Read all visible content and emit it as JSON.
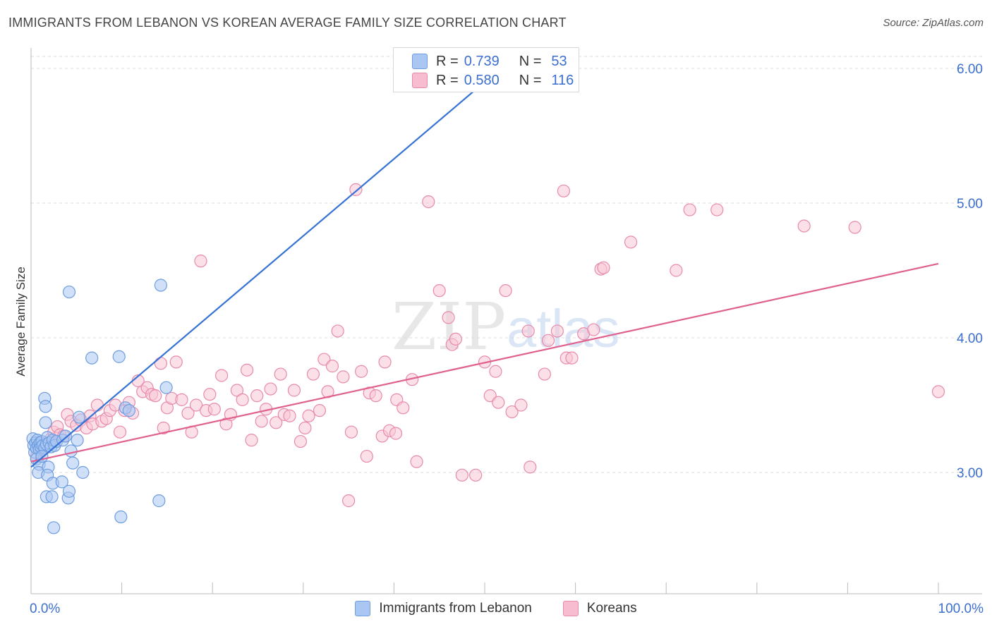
{
  "title": "IMMIGRANTS FROM LEBANON VS KOREAN AVERAGE FAMILY SIZE CORRELATION CHART",
  "source": "Source: ZipAtlas.com",
  "watermark": {
    "zip": "ZIP",
    "atlas": "atlas"
  },
  "legend": {
    "rows": [
      {
        "r_label": "R =",
        "r_value": "0.739",
        "n_label": "N =",
        "n_value": "53",
        "color": "#a9c7f2",
        "border": "#6e9de0"
      },
      {
        "r_label": "R =",
        "r_value": "0.580",
        "n_label": "N =",
        "n_value": "116",
        "color": "#f7bcd0",
        "border": "#e88aab"
      }
    ]
  },
  "colors": {
    "lebanon_fill": "#a9c7f2",
    "lebanon_stroke": "#6e9de0",
    "lebanon_line": "#3473d4",
    "korean_fill": "#f7c6d6",
    "korean_stroke": "#e88aab",
    "korean_line": "#e0608e",
    "tick_label": "#3b6fce",
    "grid": "#dddddd"
  },
  "chart_data": {
    "type": "scatter",
    "title": "IMMIGRANTS FROM LEBANON VS KOREAN AVERAGE FAMILY SIZE CORRELATION CHART",
    "xlabel": "",
    "ylabel": "Average Family Size",
    "xlim": [
      0,
      100
    ],
    "ylim": [
      2.0,
      6.1
    ],
    "x_tick_labels": [
      "0.0%",
      "100.0%"
    ],
    "y_ticks": [
      3.0,
      4.0,
      5.0,
      6.0
    ],
    "y_tick_labels": [
      "3.00",
      "4.00",
      "5.00",
      "6.00"
    ],
    "grid": true,
    "legend_position": "bottom",
    "series": [
      {
        "name": "Immigrants from Lebanon",
        "r": 0.739,
        "n": 53,
        "trend": {
          "x": [
            0,
            50
          ],
          "y": [
            3.04,
            5.9
          ]
        },
        "points": [
          [
            0.2,
            3.25
          ],
          [
            0.3,
            3.2
          ],
          [
            0.4,
            3.15
          ],
          [
            0.5,
            3.22
          ],
          [
            0.6,
            3.18
          ],
          [
            0.7,
            3.24
          ],
          [
            0.8,
            3.2
          ],
          [
            0.9,
            3.17
          ],
          [
            1.0,
            3.22
          ],
          [
            1.1,
            3.19
          ],
          [
            1.2,
            3.23
          ],
          [
            1.3,
            3.2
          ],
          [
            1.5,
            3.18
          ],
          [
            1.7,
            3.21
          ],
          [
            1.8,
            3.26
          ],
          [
            2.0,
            3.22
          ],
          [
            2.2,
            3.19
          ],
          [
            2.4,
            3.24
          ],
          [
            2.6,
            3.2
          ],
          [
            2.8,
            3.23
          ],
          [
            0.6,
            3.1
          ],
          [
            0.9,
            3.06
          ],
          [
            1.2,
            3.12
          ],
          [
            0.8,
            3.0
          ],
          [
            1.9,
            3.04
          ],
          [
            1.5,
            3.55
          ],
          [
            1.6,
            3.49
          ],
          [
            1.6,
            3.37
          ],
          [
            1.8,
            2.98
          ],
          [
            1.7,
            2.82
          ],
          [
            2.3,
            2.82
          ],
          [
            2.4,
            2.92
          ],
          [
            2.5,
            2.59
          ],
          [
            3.4,
            2.93
          ],
          [
            4.1,
            2.81
          ],
          [
            4.2,
            2.86
          ],
          [
            4.2,
            4.34
          ],
          [
            3.5,
            3.24
          ],
          [
            3.8,
            3.27
          ],
          [
            4.4,
            3.16
          ],
          [
            4.6,
            3.07
          ],
          [
            5.1,
            3.24
          ],
          [
            5.3,
            3.41
          ],
          [
            5.7,
            3.0
          ],
          [
            6.7,
            3.85
          ],
          [
            9.7,
            3.86
          ],
          [
            10.4,
            3.48
          ],
          [
            10.8,
            3.46
          ],
          [
            9.9,
            2.67
          ],
          [
            14.3,
            4.39
          ],
          [
            14.1,
            2.79
          ],
          [
            14.9,
            3.63
          ],
          [
            42.5,
            5.95
          ]
        ]
      },
      {
        "name": "Koreans",
        "r": 0.58,
        "n": 116,
        "trend": {
          "x": [
            0,
            100
          ],
          "y": [
            3.08,
            4.55
          ]
        },
        "points": [
          [
            0.6,
            3.12
          ],
          [
            1.0,
            3.16
          ],
          [
            1.3,
            3.22
          ],
          [
            1.8,
            3.2
          ],
          [
            2.2,
            3.25
          ],
          [
            2.5,
            3.3
          ],
          [
            2.9,
            3.34
          ],
          [
            3.2,
            3.28
          ],
          [
            3.6,
            3.27
          ],
          [
            4.0,
            3.43
          ],
          [
            4.4,
            3.38
          ],
          [
            5.0,
            3.35
          ],
          [
            5.5,
            3.39
          ],
          [
            6.1,
            3.33
          ],
          [
            6.5,
            3.42
          ],
          [
            6.8,
            3.36
          ],
          [
            7.3,
            3.5
          ],
          [
            7.8,
            3.38
          ],
          [
            8.3,
            3.4
          ],
          [
            8.7,
            3.46
          ],
          [
            9.3,
            3.5
          ],
          [
            9.8,
            3.3
          ],
          [
            10.3,
            3.46
          ],
          [
            10.8,
            3.52
          ],
          [
            11.2,
            3.44
          ],
          [
            11.8,
            3.68
          ],
          [
            12.3,
            3.6
          ],
          [
            12.8,
            3.63
          ],
          [
            13.3,
            3.58
          ],
          [
            13.7,
            3.57
          ],
          [
            14.3,
            3.81
          ],
          [
            14.6,
            3.33
          ],
          [
            15.0,
            3.48
          ],
          [
            15.5,
            3.55
          ],
          [
            16.0,
            3.82
          ],
          [
            16.6,
            3.54
          ],
          [
            17.3,
            3.44
          ],
          [
            17.7,
            3.3
          ],
          [
            18.2,
            3.5
          ],
          [
            18.7,
            4.57
          ],
          [
            19.3,
            3.46
          ],
          [
            19.7,
            3.58
          ],
          [
            20.2,
            3.47
          ],
          [
            21.0,
            3.72
          ],
          [
            21.5,
            3.36
          ],
          [
            22.0,
            3.43
          ],
          [
            22.7,
            3.61
          ],
          [
            23.3,
            3.54
          ],
          [
            23.8,
            3.76
          ],
          [
            24.3,
            3.24
          ],
          [
            24.9,
            3.57
          ],
          [
            25.4,
            3.38
          ],
          [
            25.9,
            3.47
          ],
          [
            26.4,
            3.62
          ],
          [
            27.0,
            3.37
          ],
          [
            27.5,
            3.73
          ],
          [
            27.9,
            3.43
          ],
          [
            28.5,
            3.42
          ],
          [
            29.0,
            3.61
          ],
          [
            29.7,
            3.23
          ],
          [
            30.2,
            3.33
          ],
          [
            30.6,
            3.42
          ],
          [
            31.1,
            3.73
          ],
          [
            31.8,
            3.46
          ],
          [
            32.3,
            3.84
          ],
          [
            32.7,
            3.6
          ],
          [
            33.2,
            3.79
          ],
          [
            33.8,
            4.05
          ],
          [
            34.4,
            3.71
          ],
          [
            35.0,
            2.79
          ],
          [
            35.3,
            3.3
          ],
          [
            35.8,
            5.1
          ],
          [
            36.4,
            3.75
          ],
          [
            37.0,
            3.12
          ],
          [
            37.3,
            3.59
          ],
          [
            38.0,
            3.57
          ],
          [
            38.7,
            3.27
          ],
          [
            39.0,
            3.82
          ],
          [
            39.5,
            3.31
          ],
          [
            40.2,
            3.29
          ],
          [
            40.3,
            3.54
          ],
          [
            41.0,
            3.48
          ],
          [
            42.0,
            3.69
          ],
          [
            42.5,
            3.08
          ],
          [
            43.8,
            5.01
          ],
          [
            45.0,
            4.35
          ],
          [
            46.0,
            4.15
          ],
          [
            46.4,
            3.95
          ],
          [
            46.8,
            3.99
          ],
          [
            47.5,
            2.98
          ],
          [
            49.0,
            2.98
          ],
          [
            50.0,
            3.82
          ],
          [
            50.6,
            3.57
          ],
          [
            51.2,
            3.75
          ],
          [
            51.5,
            3.52
          ],
          [
            52.3,
            4.35
          ],
          [
            53.0,
            3.45
          ],
          [
            54.0,
            3.5
          ],
          [
            54.8,
            4.05
          ],
          [
            55.0,
            3.04
          ],
          [
            56.6,
            3.73
          ],
          [
            57.0,
            3.98
          ],
          [
            58.0,
            4.05
          ],
          [
            58.7,
            5.09
          ],
          [
            59.0,
            3.85
          ],
          [
            59.6,
            3.85
          ],
          [
            60.9,
            4.03
          ],
          [
            62.0,
            4.06
          ],
          [
            62.8,
            4.51
          ],
          [
            63.1,
            4.52
          ],
          [
            66.1,
            4.71
          ],
          [
            71.1,
            4.5
          ],
          [
            72.6,
            4.95
          ],
          [
            75.6,
            4.95
          ],
          [
            85.2,
            4.83
          ],
          [
            90.8,
            4.82
          ],
          [
            100.0,
            3.6
          ]
        ]
      }
    ]
  },
  "bottom_legend": [
    "Immigrants from Lebanon",
    "Koreans"
  ]
}
